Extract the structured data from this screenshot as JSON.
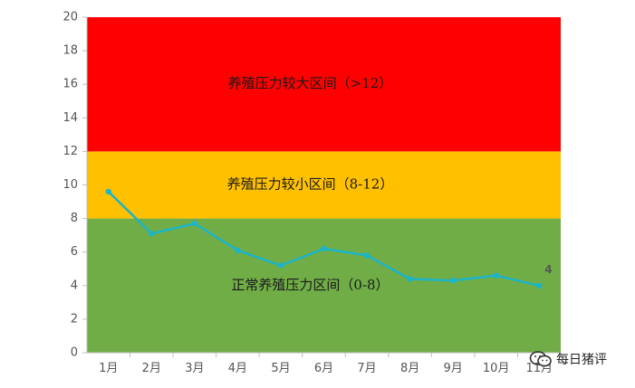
{
  "chart_data": {
    "type": "line",
    "categories": [
      "1月",
      "2月",
      "3月",
      "4月",
      "5月",
      "6月",
      "7月",
      "8月",
      "9月",
      "10月",
      "11月"
    ],
    "series": [
      {
        "values": [
          9.6,
          7.1,
          7.7,
          6.1,
          5.2,
          6.2,
          5.8,
          4.4,
          4.3,
          4.6,
          4.0
        ]
      }
    ],
    "ylim": [
      0,
      20
    ],
    "yticks": [
      0,
      2,
      4,
      6,
      8,
      10,
      12,
      14,
      16,
      18,
      20
    ],
    "zones": [
      {
        "label": "正常养殖压力区间（0-8）",
        "from": 0,
        "to": 8,
        "color": "#70ad47"
      },
      {
        "label": "养殖压力较小区间（8-12）",
        "from": 8,
        "to": 12,
        "color": "#ffc000"
      },
      {
        "label": "养殖压力较大区间（>12）",
        "from": 12,
        "to": 20,
        "color": "#ff0000"
      }
    ],
    "data_labels": [
      {
        "index": 10,
        "text": "4"
      }
    ],
    "line_color": "#1cb4c8",
    "grid": false,
    "legend": "none"
  },
  "watermark": {
    "text": "每日猪评",
    "icon": "wechat-icon"
  }
}
